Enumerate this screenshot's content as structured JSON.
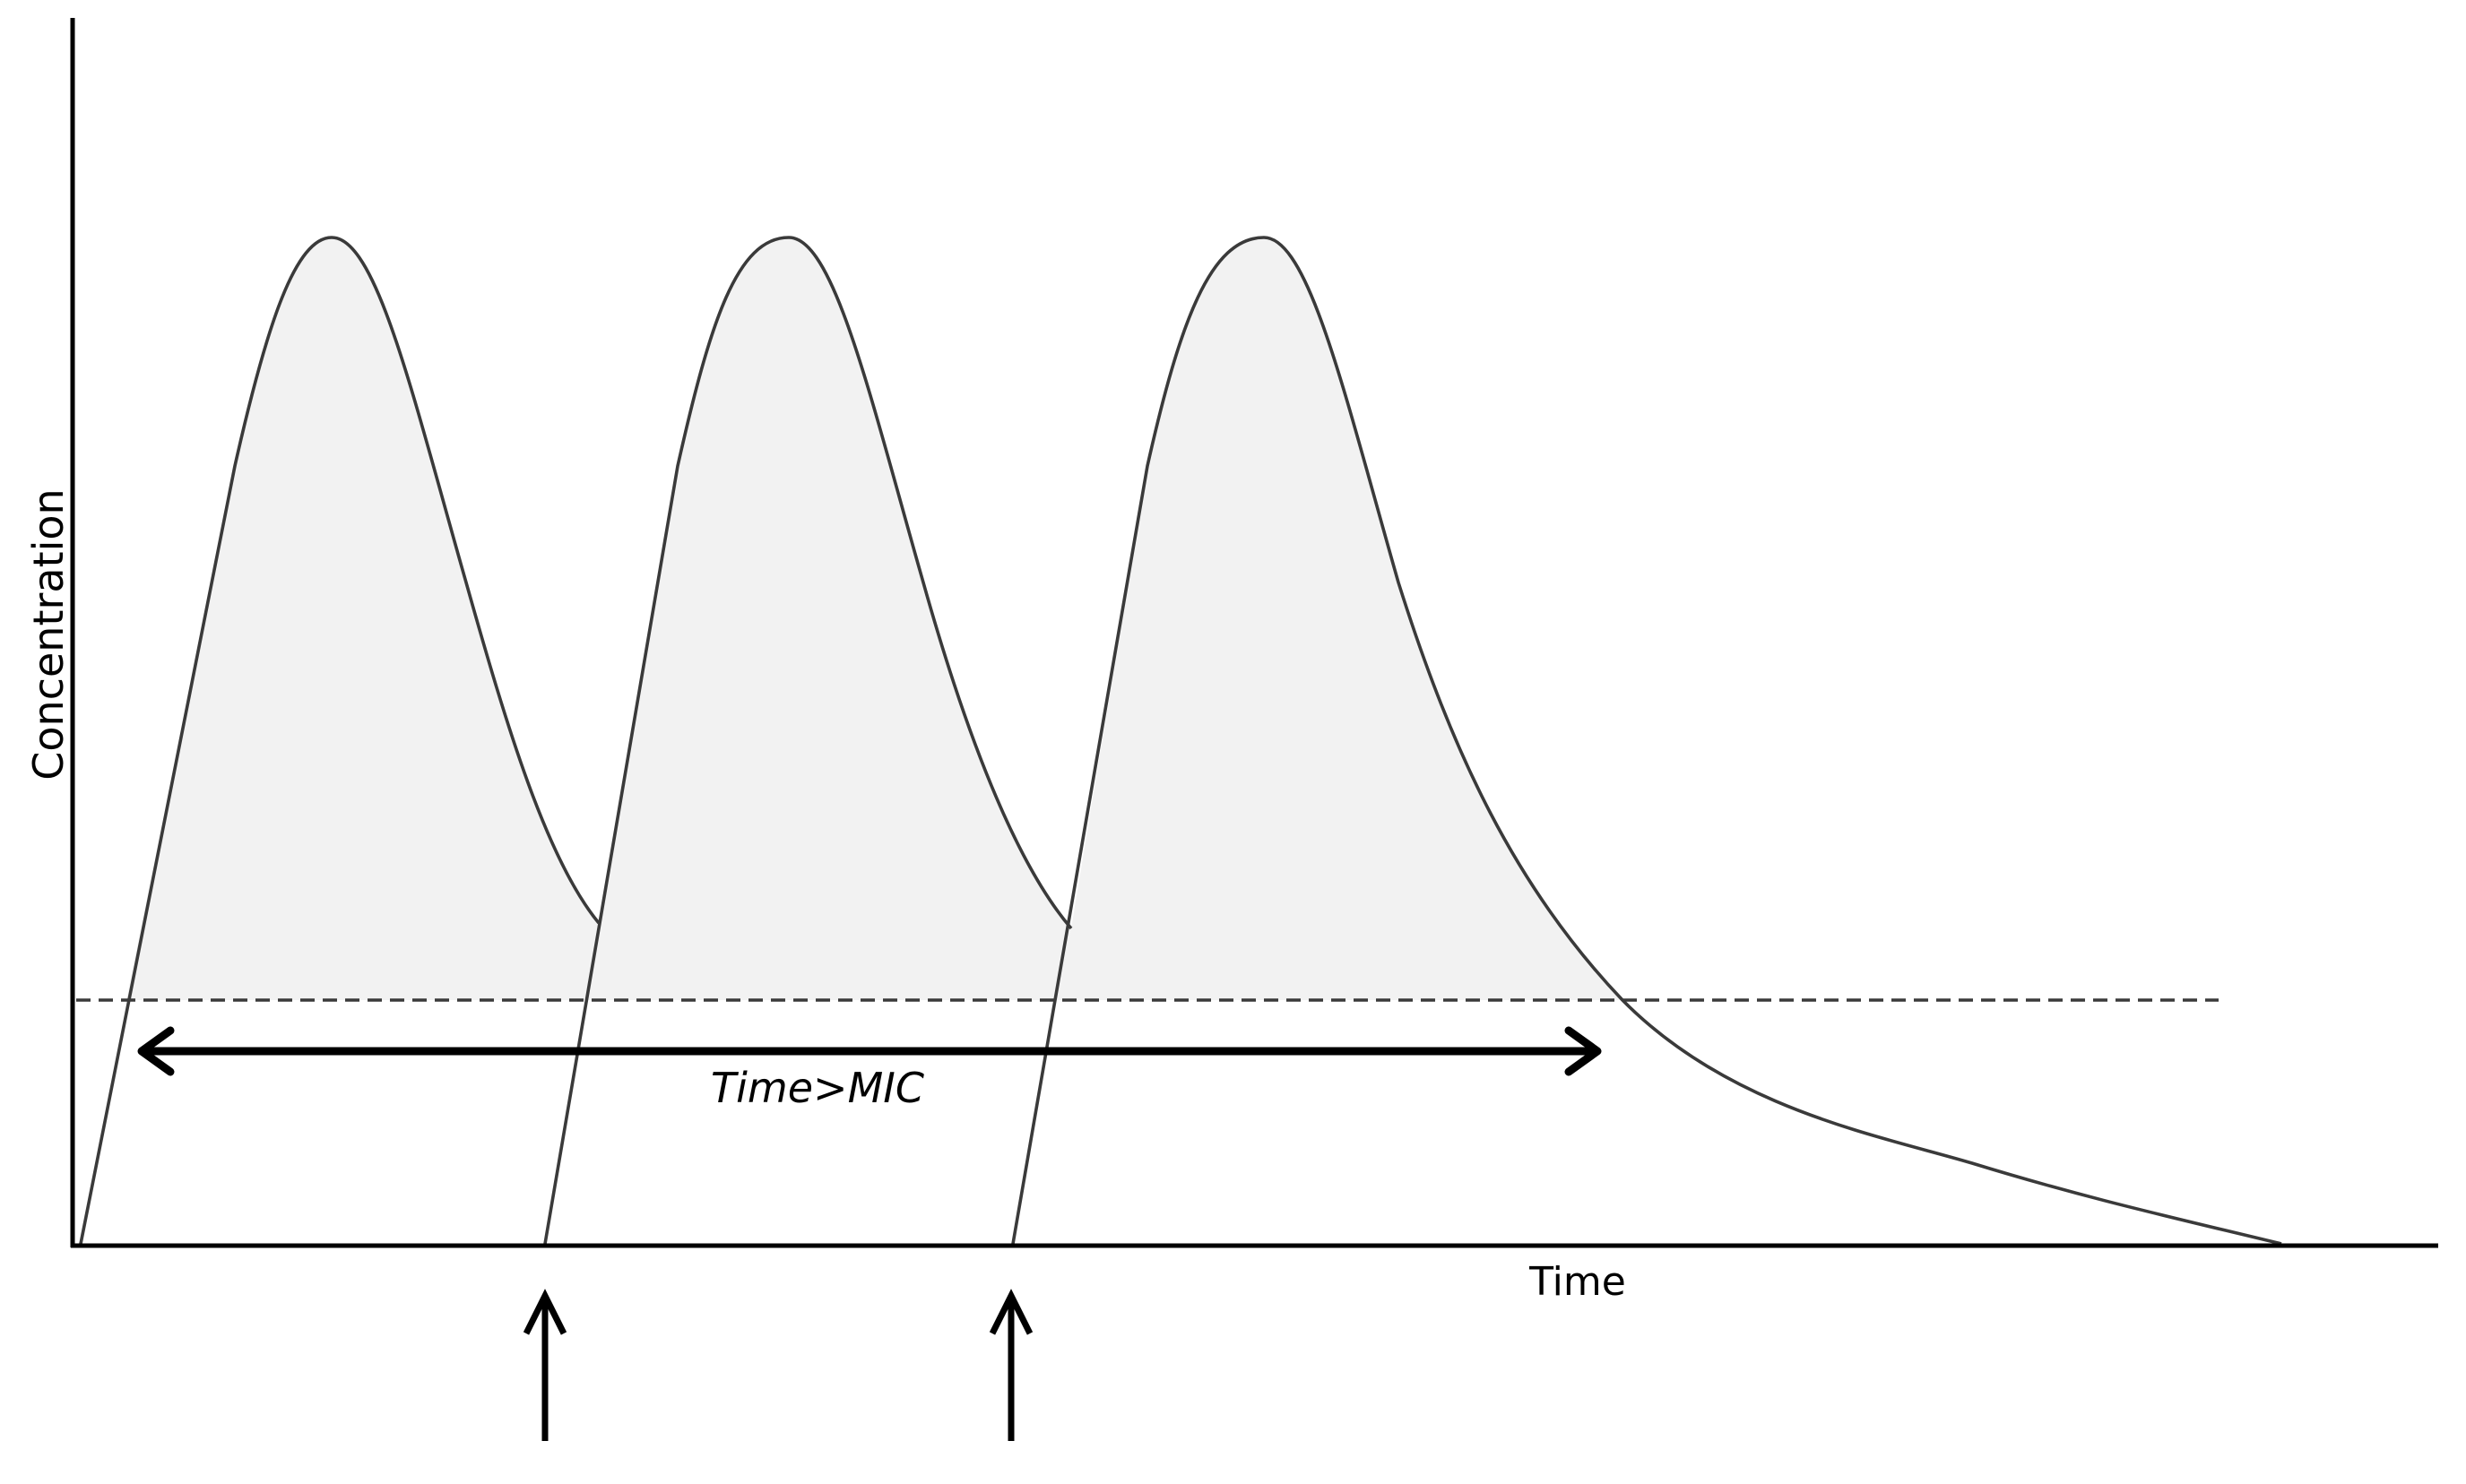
{
  "axes": {
    "y_label": "Concentration",
    "x_label": "Time"
  },
  "annotations": {
    "span_label": "Time>MIC"
  },
  "threshold": {
    "style": "dashed",
    "color": "#3a3a3a"
  },
  "doses": {
    "count": 3,
    "marked_by_arrows": 2
  },
  "colors": {
    "curve": "#3a3a3a",
    "shade": "#f2f2f2",
    "axis": "#000000"
  }
}
